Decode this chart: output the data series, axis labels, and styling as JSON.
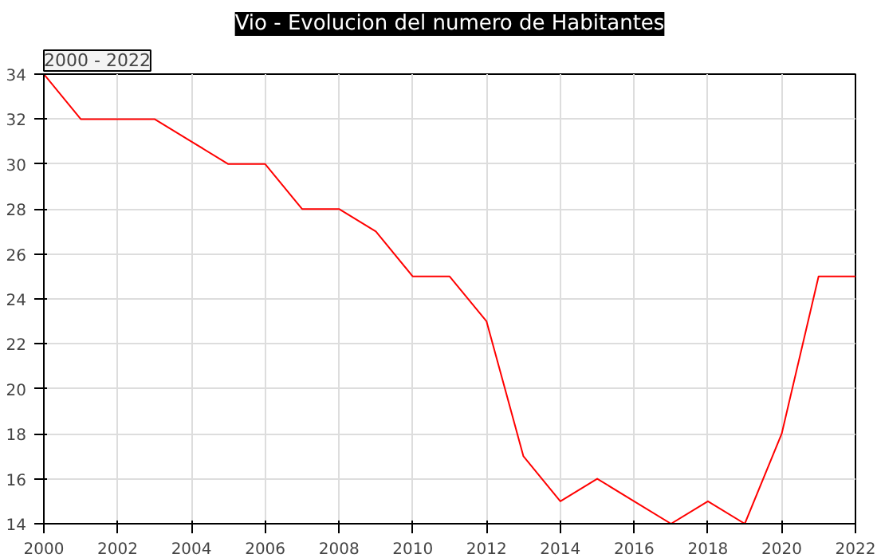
{
  "chart_data": {
    "type": "line",
    "title": "Vio - Evolucion del numero de Habitantes",
    "subtitle": "2000 - 2022",
    "x": [
      2000,
      2001,
      2002,
      2003,
      2004,
      2005,
      2006,
      2007,
      2008,
      2009,
      2010,
      2011,
      2012,
      2013,
      2014,
      2015,
      2016,
      2017,
      2018,
      2019,
      2020,
      2021,
      2022
    ],
    "series": [
      {
        "color": "#ff0000",
        "values": [
          34,
          32,
          32,
          32,
          31,
          30,
          30,
          28,
          28,
          27,
          25,
          25,
          23,
          17,
          15,
          16,
          15,
          14,
          15,
          14,
          18,
          25,
          25
        ]
      }
    ],
    "xlim": [
      2000,
      2022
    ],
    "xticks": [
      2000,
      2002,
      2004,
      2006,
      2008,
      2010,
      2012,
      2014,
      2016,
      2018,
      2020,
      2022
    ],
    "ylim": [
      14,
      34
    ],
    "yticks": [
      14,
      16,
      18,
      20,
      22,
      24,
      26,
      28,
      30,
      32,
      34
    ],
    "grid": true,
    "marker": "none",
    "line_style": "solid"
  }
}
